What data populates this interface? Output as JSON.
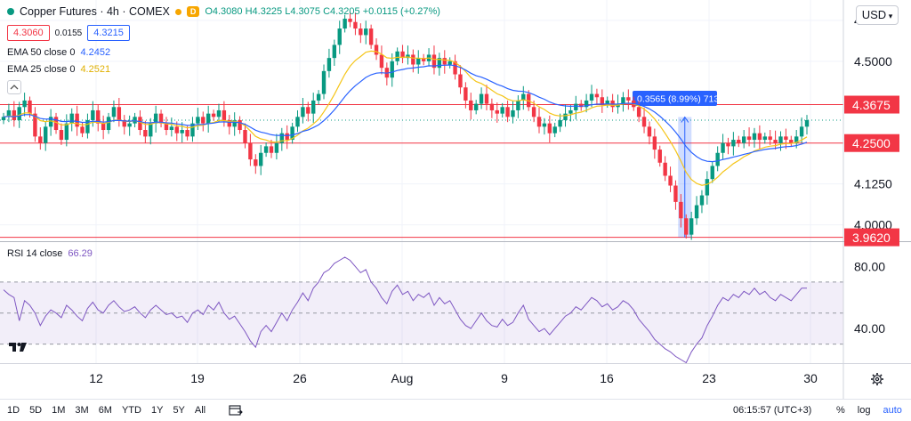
{
  "header": {
    "symbol": "Copper Futures · 4h · COMEX",
    "interval_badge": "D",
    "ohlc": {
      "o": "O4.3080",
      "h": "H4.3225",
      "l": "L4.3075",
      "c": "C4.3205",
      "chg": "+0.0115 (+0.27%)"
    },
    "bid": "4.3060",
    "spread": "0.0155",
    "ask": "4.3215",
    "currency": "USD"
  },
  "indicators": {
    "ema50": {
      "label": "EMA 50 close 0",
      "value": "4.2452",
      "color": "#2962ff"
    },
    "ema25": {
      "label": "EMA 25 close 0",
      "value": "4.2521",
      "color": "#f5c518"
    },
    "rsi": {
      "label": "RSI 14 close",
      "value": "66.29",
      "color": "#7e57c2"
    }
  },
  "measure": {
    "label": "0.3565 (8.99%) 713"
  },
  "price_axis": {
    "ticks": [
      "4.6250",
      "4.5000",
      "4.1250",
      "4.0000"
    ],
    "levels": [
      {
        "value": 4.3675,
        "label": "4.3675"
      },
      {
        "value": 4.25,
        "label": "4.2500"
      },
      {
        "value": 3.962,
        "label": "3.9620"
      }
    ],
    "level_color": "#f23645"
  },
  "rsi_axis": {
    "ticks": [
      "80.00",
      "40.00"
    ]
  },
  "time_axis": {
    "ticks": [
      "12",
      "19",
      "26",
      "Aug",
      "9",
      "16",
      "23",
      "30"
    ]
  },
  "bottom": {
    "timeframes": [
      "1D",
      "5D",
      "1M",
      "3M",
      "6M",
      "YTD",
      "1Y",
      "5Y",
      "All"
    ],
    "clock": "06:15:57 (UTC+3)",
    "options": {
      "percent": "%",
      "log": "log",
      "auto": "auto"
    }
  },
  "colors": {
    "up": "#089981",
    "down": "#f23645",
    "measure": "#2962ff"
  },
  "chart_data": [
    {
      "type": "candlestick",
      "title": "Copper Futures · 4h · COMEX",
      "x_ticks": [
        "12",
        "19",
        "26",
        "Aug",
        "9",
        "16",
        "23",
        "30"
      ],
      "ylim": [
        3.95,
        4.66
      ],
      "horizontal_levels": [
        4.3675,
        4.25,
        3.962
      ],
      "close": [
        4.33,
        4.35,
        4.32,
        4.36,
        4.38,
        4.34,
        4.27,
        4.25,
        4.3,
        4.33,
        4.29,
        4.26,
        4.31,
        4.34,
        4.3,
        4.28,
        4.32,
        4.35,
        4.31,
        4.29,
        4.33,
        4.36,
        4.32,
        4.3,
        4.31,
        4.33,
        4.29,
        4.27,
        4.31,
        4.34,
        4.31,
        4.29,
        4.3,
        4.28,
        4.29,
        4.27,
        4.31,
        4.33,
        4.31,
        4.34,
        4.33,
        4.35,
        4.32,
        4.3,
        4.32,
        4.29,
        4.25,
        4.2,
        4.18,
        4.22,
        4.24,
        4.22,
        4.25,
        4.28,
        4.26,
        4.3,
        4.33,
        4.36,
        4.34,
        4.38,
        4.4,
        4.47,
        4.51,
        4.55,
        4.6,
        4.63,
        4.62,
        4.6,
        4.58,
        4.6,
        4.55,
        4.52,
        4.48,
        4.45,
        4.5,
        4.53,
        4.51,
        4.52,
        4.49,
        4.51,
        4.5,
        4.52,
        4.48,
        4.51,
        4.49,
        4.5,
        4.46,
        4.42,
        4.38,
        4.35,
        4.37,
        4.4,
        4.37,
        4.35,
        4.34,
        4.36,
        4.33,
        4.35,
        4.38,
        4.4,
        4.36,
        4.33,
        4.3,
        4.31,
        4.28,
        4.3,
        4.32,
        4.34,
        4.35,
        4.37,
        4.36,
        4.38,
        4.4,
        4.39,
        4.37,
        4.38,
        4.36,
        4.37,
        4.39,
        4.38,
        4.36,
        4.33,
        4.3,
        4.27,
        4.23,
        4.19,
        4.15,
        4.12,
        4.07,
        4.02,
        3.97,
        4.02,
        4.06,
        4.09,
        4.14,
        4.18,
        4.22,
        4.25,
        4.24,
        4.26,
        4.25,
        4.27,
        4.26,
        4.28,
        4.26,
        4.27,
        4.26,
        4.25,
        4.27,
        4.26,
        4.25,
        4.27,
        4.3,
        4.32
      ]
    },
    {
      "type": "line",
      "title": "RSI 14 close",
      "ylim": [
        20,
        90
      ],
      "bands": [
        70,
        30
      ],
      "values": [
        65,
        62,
        60,
        45,
        58,
        55,
        50,
        42,
        48,
        52,
        50,
        47,
        55,
        52,
        48,
        45,
        53,
        57,
        52,
        50,
        55,
        58,
        54,
        51,
        52,
        54,
        50,
        47,
        52,
        55,
        52,
        49,
        50,
        47,
        48,
        44,
        50,
        52,
        49,
        55,
        52,
        57,
        50,
        46,
        48,
        43,
        38,
        32,
        28,
        38,
        42,
        38,
        44,
        50,
        45,
        52,
        57,
        63,
        58,
        66,
        70,
        76,
        78,
        82,
        84,
        86,
        84,
        80,
        76,
        78,
        70,
        66,
        60,
        56,
        64,
        68,
        62,
        64,
        58,
        62,
        60,
        63,
        55,
        60,
        56,
        58,
        52,
        46,
        42,
        40,
        45,
        50,
        45,
        42,
        41,
        46,
        42,
        44,
        50,
        55,
        46,
        42,
        38,
        40,
        36,
        40,
        44,
        48,
        50,
        54,
        52,
        56,
        60,
        58,
        54,
        56,
        52,
        54,
        58,
        56,
        52,
        46,
        42,
        38,
        33,
        30,
        27,
        25,
        22,
        20,
        18,
        25,
        30,
        34,
        42,
        48,
        55,
        60,
        58,
        62,
        60,
        64,
        62,
        66,
        62,
        64,
        60,
        58,
        62,
        60,
        58,
        62,
        66,
        66
      ]
    }
  ]
}
